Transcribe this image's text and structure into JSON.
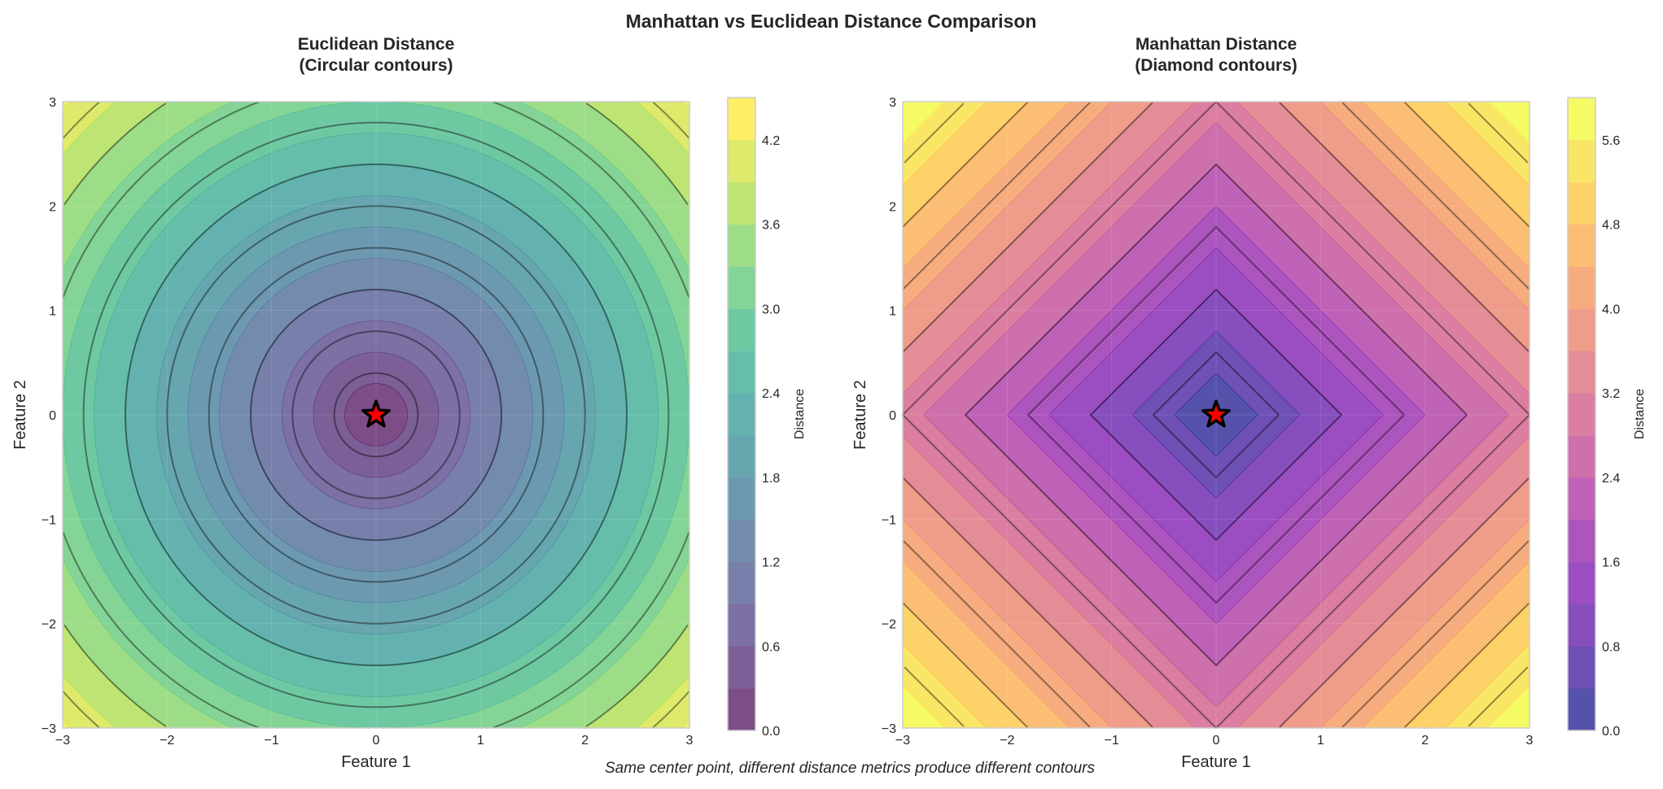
{
  "title": "Manhattan vs Euclidean Distance Comparison",
  "caption": "Same center point, different distance metrics produce different contours",
  "chart_data": [
    {
      "type": "heatmap",
      "subtype": "filled-contour",
      "metric": "euclidean",
      "title_line1": "Euclidean Distance",
      "title_line2": "(Circular contours)",
      "xlabel": "Feature 1",
      "ylabel": "Feature 2",
      "xlim": [
        -3,
        3
      ],
      "ylim": [
        -3,
        3
      ],
      "xticks": [
        "−3",
        "−2",
        "−1",
        "0",
        "1",
        "2",
        "3"
      ],
      "yticks": [
        "−3",
        "−2",
        "−1",
        "0",
        "1",
        "2",
        "3"
      ],
      "tick_values": [
        -3,
        -2,
        -1,
        0,
        1,
        2,
        3
      ],
      "center": [
        0,
        0
      ],
      "center_marker": "star",
      "fill_levels": [
        0,
        0.3,
        0.6,
        0.9,
        1.2,
        1.5,
        1.8,
        2.1,
        2.4,
        2.7,
        3.0,
        3.3,
        3.6,
        3.9,
        4.2,
        4.5
      ],
      "line_levels": [
        0.4,
        0.8,
        1.2,
        1.6,
        2.0,
        2.4,
        2.8,
        3.2,
        3.6,
        4.0
      ],
      "colormap": "viridis",
      "alpha": 0.7,
      "grid": true,
      "colorbar": {
        "label": "Distance",
        "range": [
          0,
          4.5
        ],
        "tick_values": [
          0,
          0.6,
          1.2,
          1.8,
          2.4,
          3.0,
          3.6,
          4.2
        ],
        "tick_labels": [
          "0.0",
          "0.6",
          "1.2",
          "1.8",
          "2.4",
          "3.0",
          "3.6",
          "4.2"
        ]
      }
    },
    {
      "type": "heatmap",
      "subtype": "filled-contour",
      "metric": "manhattan",
      "title_line1": "Manhattan Distance",
      "title_line2": "(Diamond contours)",
      "xlabel": "Feature 1",
      "ylabel": "Feature 2",
      "xlim": [
        -3,
        3
      ],
      "ylim": [
        -3,
        3
      ],
      "xticks": [
        "−3",
        "−2",
        "−1",
        "0",
        "1",
        "2",
        "3"
      ],
      "yticks": [
        "−3",
        "−2",
        "−1",
        "0",
        "1",
        "2",
        "3"
      ],
      "tick_values": [
        -3,
        -2,
        -1,
        0,
        1,
        2,
        3
      ],
      "center": [
        0,
        0
      ],
      "center_marker": "star",
      "fill_levels": [
        0,
        0.4,
        0.8,
        1.2,
        1.6,
        2.0,
        2.4,
        2.8,
        3.2,
        3.6,
        4.0,
        4.4,
        4.8,
        5.2,
        5.6,
        6.0
      ],
      "line_levels": [
        0.6,
        1.2,
        1.8,
        2.4,
        3.0,
        3.6,
        4.2,
        4.8,
        5.4
      ],
      "colormap": "plasma",
      "alpha": 0.7,
      "grid": true,
      "colorbar": {
        "label": "Distance",
        "range": [
          0,
          6.0
        ],
        "tick_values": [
          0,
          0.8,
          1.6,
          2.4,
          3.2,
          4.0,
          4.8,
          5.6
        ],
        "tick_labels": [
          "0.0",
          "0.8",
          "1.6",
          "2.4",
          "3.2",
          "4.0",
          "4.8",
          "5.6"
        ]
      }
    }
  ],
  "colors": {
    "marker_fill": "#ff0000",
    "marker_edge": "#000000",
    "axes_edge": "#cccccc"
  }
}
